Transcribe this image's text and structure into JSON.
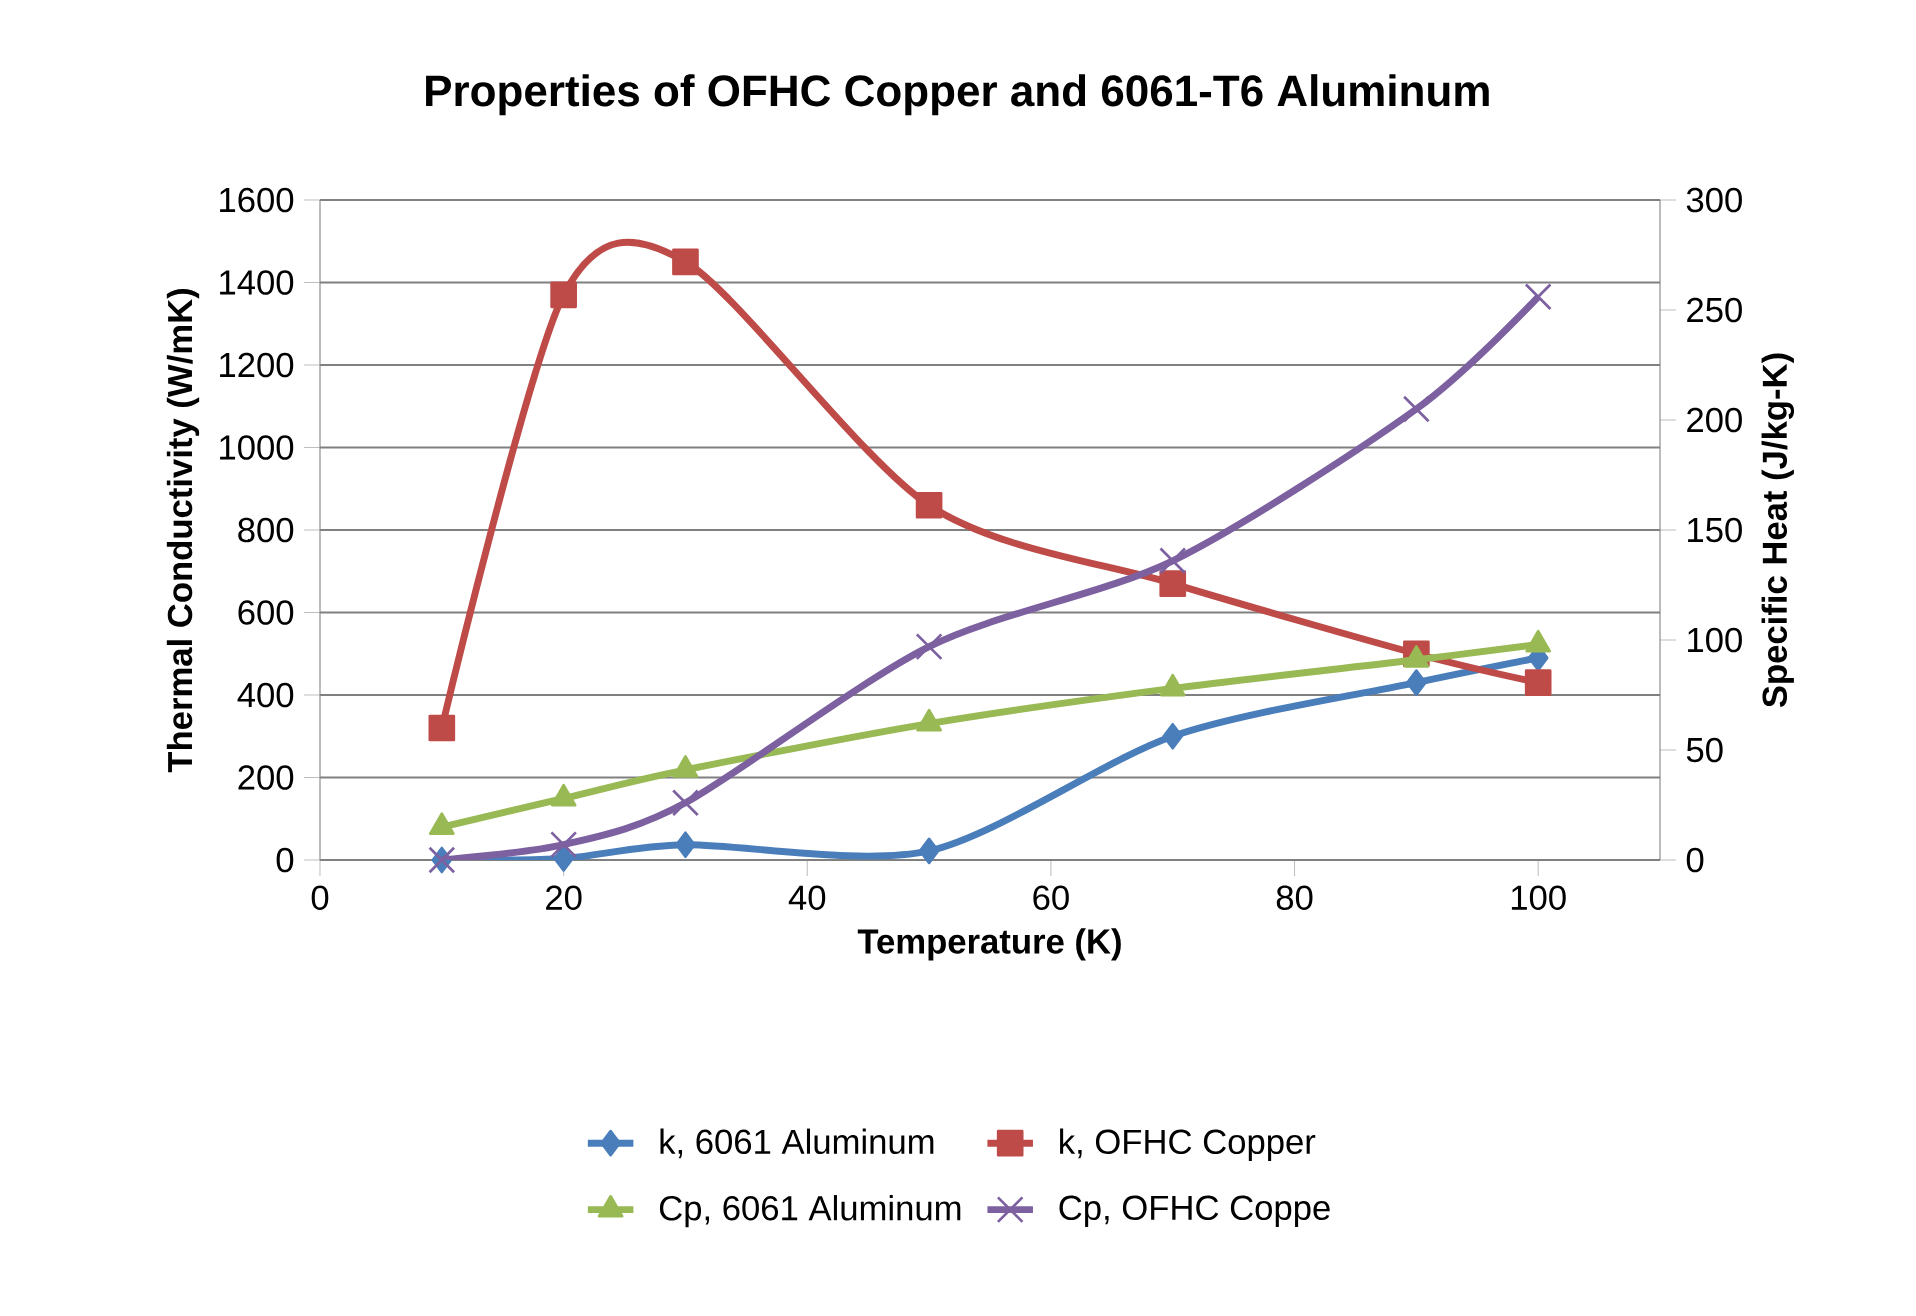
{
  "chart_data": {
    "type": "line",
    "title": "Properties of OFHC Copper and 6061-T6 Aluminum",
    "xlabel": "Temperature (K)",
    "ylabel": "Thermal Conductivity (W/mK)",
    "y2label": "Specific Heat (J/kg-K)",
    "x": [
      10,
      20,
      30,
      50,
      70,
      90,
      100
    ],
    "series": [
      {
        "name": "k, 6061 Aluminum",
        "color": "#4a7ebb",
        "marker": "diamond",
        "values": [
          0,
          4,
          37,
          22,
          300,
          430,
          490
        ]
      },
      {
        "name": "k, OFHC Copper",
        "color": "#be4b48",
        "marker": "square",
        "values": [
          320,
          1370,
          1450,
          860,
          670,
          500,
          430
        ]
      },
      {
        "name": "Cp, 6061 Aluminum",
        "color": "#98b954",
        "marker": "triangle",
        "axis": "y2",
        "values": [
          15,
          28,
          41,
          62,
          78,
          91,
          98
        ]
      },
      {
        "name": "Cp, OFHC Coppe",
        "color": "#7d60a0",
        "marker": "cross",
        "axis": "y2",
        "values": [
          0,
          7,
          26,
          97,
          136,
          205,
          256
        ]
      }
    ],
    "xlim": [
      0,
      110
    ],
    "xticks": [
      0,
      20,
      40,
      60,
      80,
      100
    ],
    "ylim": [
      0,
      1600
    ],
    "yticks": [
      0,
      200,
      400,
      600,
      800,
      1000,
      1200,
      1400,
      1600
    ],
    "y2lim": [
      0,
      300
    ],
    "y2ticks": [
      0,
      50,
      100,
      150,
      200,
      250,
      300
    ],
    "grid": "y",
    "legend": "bottom",
    "line_style": "solid"
  }
}
